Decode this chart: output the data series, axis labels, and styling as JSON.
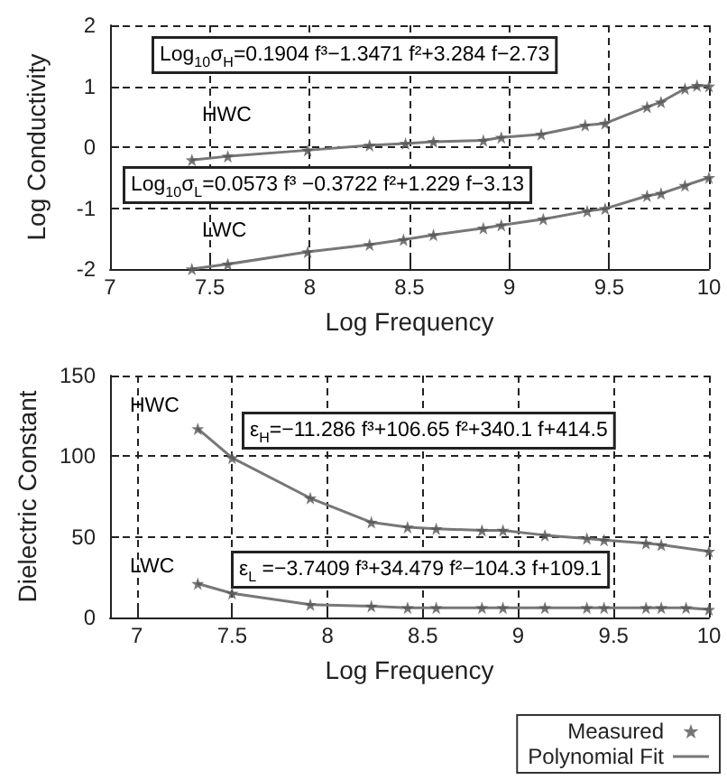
{
  "chart_data": [
    {
      "type": "line",
      "xlabel": "Log Frequency",
      "ylabel": "Log Conductivity",
      "xlim": [
        7,
        10
      ],
      "xticks": [
        7,
        7.5,
        8,
        8.5,
        9,
        9.5,
        10
      ],
      "ylim": [
        -2,
        2
      ],
      "yticks": [
        -2,
        -1,
        0,
        1,
        2
      ],
      "grid": true,
      "legend": false,
      "line_style": "solid",
      "annotations": [
        "Log$_{10}$σ$_{H}$=0.1904 f³−1.3471 f²+3.284 f−2.73",
        "Log$_{10}$σ$_{L}$=0.0573 f³ −0.3722 f²+1.229 f−3.13",
        "HWC",
        "LWC"
      ],
      "series": [
        {
          "type": "scatter",
          "marker": "star",
          "color": "#555555",
          "x": [
            7.41,
            7.59,
            7.99,
            8.3,
            8.48,
            8.62,
            8.87,
            8.96,
            9.16,
            9.38,
            9.48,
            9.69,
            9.76,
            9.88,
            9.94,
            10
          ],
          "values": [
            -0.21,
            -0.15,
            -0.05,
            0.03,
            0.06,
            0.09,
            0.11,
            0.16,
            0.21,
            0.36,
            0.39,
            0.66,
            0.74,
            0.96,
            1.01,
            1.0
          ]
        },
        {
          "type": "line",
          "marker": "none",
          "color": "#777777",
          "x": [
            7.41,
            7.59,
            7.99,
            8.3,
            8.48,
            8.62,
            8.87,
            8.96,
            9.16,
            9.38,
            9.48,
            9.69,
            9.76,
            9.88,
            9.94,
            10
          ],
          "values": [
            -0.21,
            -0.15,
            -0.05,
            0.03,
            0.06,
            0.09,
            0.11,
            0.16,
            0.21,
            0.36,
            0.39,
            0.66,
            0.74,
            0.96,
            1.01,
            1.0
          ]
        },
        {
          "type": "scatter",
          "marker": "star",
          "color": "#555555",
          "x": [
            7.41,
            7.59,
            7.99,
            8.3,
            8.47,
            8.62,
            8.87,
            8.96,
            9.17,
            9.39,
            9.48,
            9.69,
            9.76,
            9.88,
            10
          ],
          "values": [
            -2.0,
            -1.92,
            -1.72,
            -1.6,
            -1.52,
            -1.44,
            -1.33,
            -1.28,
            -1.18,
            -1.05,
            -1.01,
            -0.8,
            -0.76,
            -0.63,
            -0.5
          ]
        },
        {
          "type": "line",
          "marker": "none",
          "color": "#777777",
          "x": [
            7.41,
            7.59,
            7.99,
            8.3,
            8.47,
            8.62,
            8.87,
            8.96,
            9.17,
            9.39,
            9.48,
            9.69,
            9.76,
            9.88,
            10
          ],
          "values": [
            -2.0,
            -1.92,
            -1.72,
            -1.6,
            -1.52,
            -1.44,
            -1.33,
            -1.28,
            -1.18,
            -1.05,
            -1.01,
            -0.8,
            -0.76,
            -0.63,
            -0.5
          ]
        }
      ]
    },
    {
      "type": "line",
      "xlabel": "Log Frequency",
      "ylabel": "Dielectric Constant",
      "xlim": [
        6.86,
        10
      ],
      "xticks": [
        7,
        7.5,
        8,
        8.5,
        9,
        9.5,
        10
      ],
      "ylim": [
        0,
        150
      ],
      "yticks": [
        0,
        50,
        100,
        150
      ],
      "grid": true,
      "legend": "bottom right",
      "line_style": "solid",
      "annotations": [
        "ε$_{H}$=−11.286 f³+106.65 f²+340.1 f+414.5",
        "ε$_{L}$ =−3.7409 f³+34.479 f²−104.3 f+109.1",
        "HWC",
        "LWC"
      ],
      "series": [
        {
          "name": "Measured",
          "type": "scatter",
          "marker": "star",
          "color": "#555555",
          "x": [
            7.32,
            7.5,
            7.91,
            8.23,
            8.42,
            8.57,
            8.81,
            8.92,
            9.14,
            9.36,
            9.45,
            9.67,
            9.75,
            10
          ],
          "values": [
            117,
            99,
            74,
            59,
            56,
            55,
            54,
            54,
            51,
            49,
            48,
            46,
            45,
            41
          ]
        },
        {
          "name": "Polynomial Fit",
          "type": "line",
          "marker": "none",
          "color": "#777777",
          "x": [
            7.32,
            7.5,
            7.91,
            8.23,
            8.42,
            8.57,
            8.81,
            8.92,
            9.14,
            9.36,
            9.45,
            9.67,
            9.75,
            10
          ],
          "values": [
            117,
            99,
            74,
            59,
            56,
            55,
            54,
            54,
            51,
            49,
            48,
            46,
            45,
            41
          ]
        },
        {
          "type": "scatter",
          "marker": "star",
          "color": "#555555",
          "x": [
            7.32,
            7.5,
            7.91,
            8.23,
            8.42,
            8.57,
            8.81,
            8.92,
            9.14,
            9.36,
            9.45,
            9.67,
            9.75,
            9.88,
            10
          ],
          "values": [
            21,
            15,
            8,
            7,
            6,
            6,
            6,
            6,
            6,
            6,
            6,
            6,
            6,
            6,
            5
          ]
        },
        {
          "type": "line",
          "marker": "none",
          "color": "#777777",
          "x": [
            7.32,
            7.5,
            7.91,
            8.23,
            8.42,
            8.57,
            8.81,
            8.92,
            9.14,
            9.36,
            9.45,
            9.67,
            9.75,
            9.88,
            10
          ],
          "values": [
            21,
            15,
            8,
            7,
            6,
            6,
            6,
            6,
            6,
            6,
            6,
            6,
            6,
            6,
            5
          ]
        }
      ]
    }
  ]
}
